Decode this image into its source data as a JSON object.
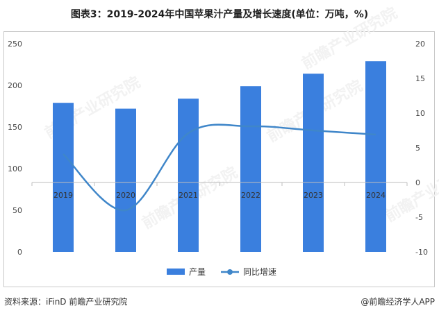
{
  "title": "图表3：2019-2024年中国苹果汁产量及增长速度(单位：万吨，%)",
  "footer": {
    "source": "资料来源：iFinD 前瞻产业研究院",
    "brand": "@前瞻经济学人APP"
  },
  "watermark": "前瞻产业研究院",
  "colors": {
    "bar": "#3a7fde",
    "line": "#3f86c9",
    "axis": "#bdbdbd"
  },
  "chart_data": {
    "type": "bar",
    "categories": [
      "2019",
      "2020",
      "2021",
      "2022",
      "2023",
      "2024"
    ],
    "series": [
      {
        "name": "产量",
        "type": "bar",
        "axis": "left",
        "values": [
          179,
          172,
          184,
          199,
          214,
          229
        ]
      },
      {
        "name": "同比增速",
        "type": "line",
        "axis": "right",
        "values": [
          4.1,
          -4.0,
          7.1,
          8.1,
          7.5,
          6.9
        ]
      }
    ],
    "ylim_left": [
      0,
      250
    ],
    "yticks_left": [
      0,
      50,
      100,
      150,
      200,
      250
    ],
    "ylim_right": [
      -10,
      20
    ],
    "yticks_right": [
      -10,
      -5,
      0,
      5,
      10,
      15,
      20
    ],
    "legend_position": "bottom-center",
    "grid": false
  }
}
